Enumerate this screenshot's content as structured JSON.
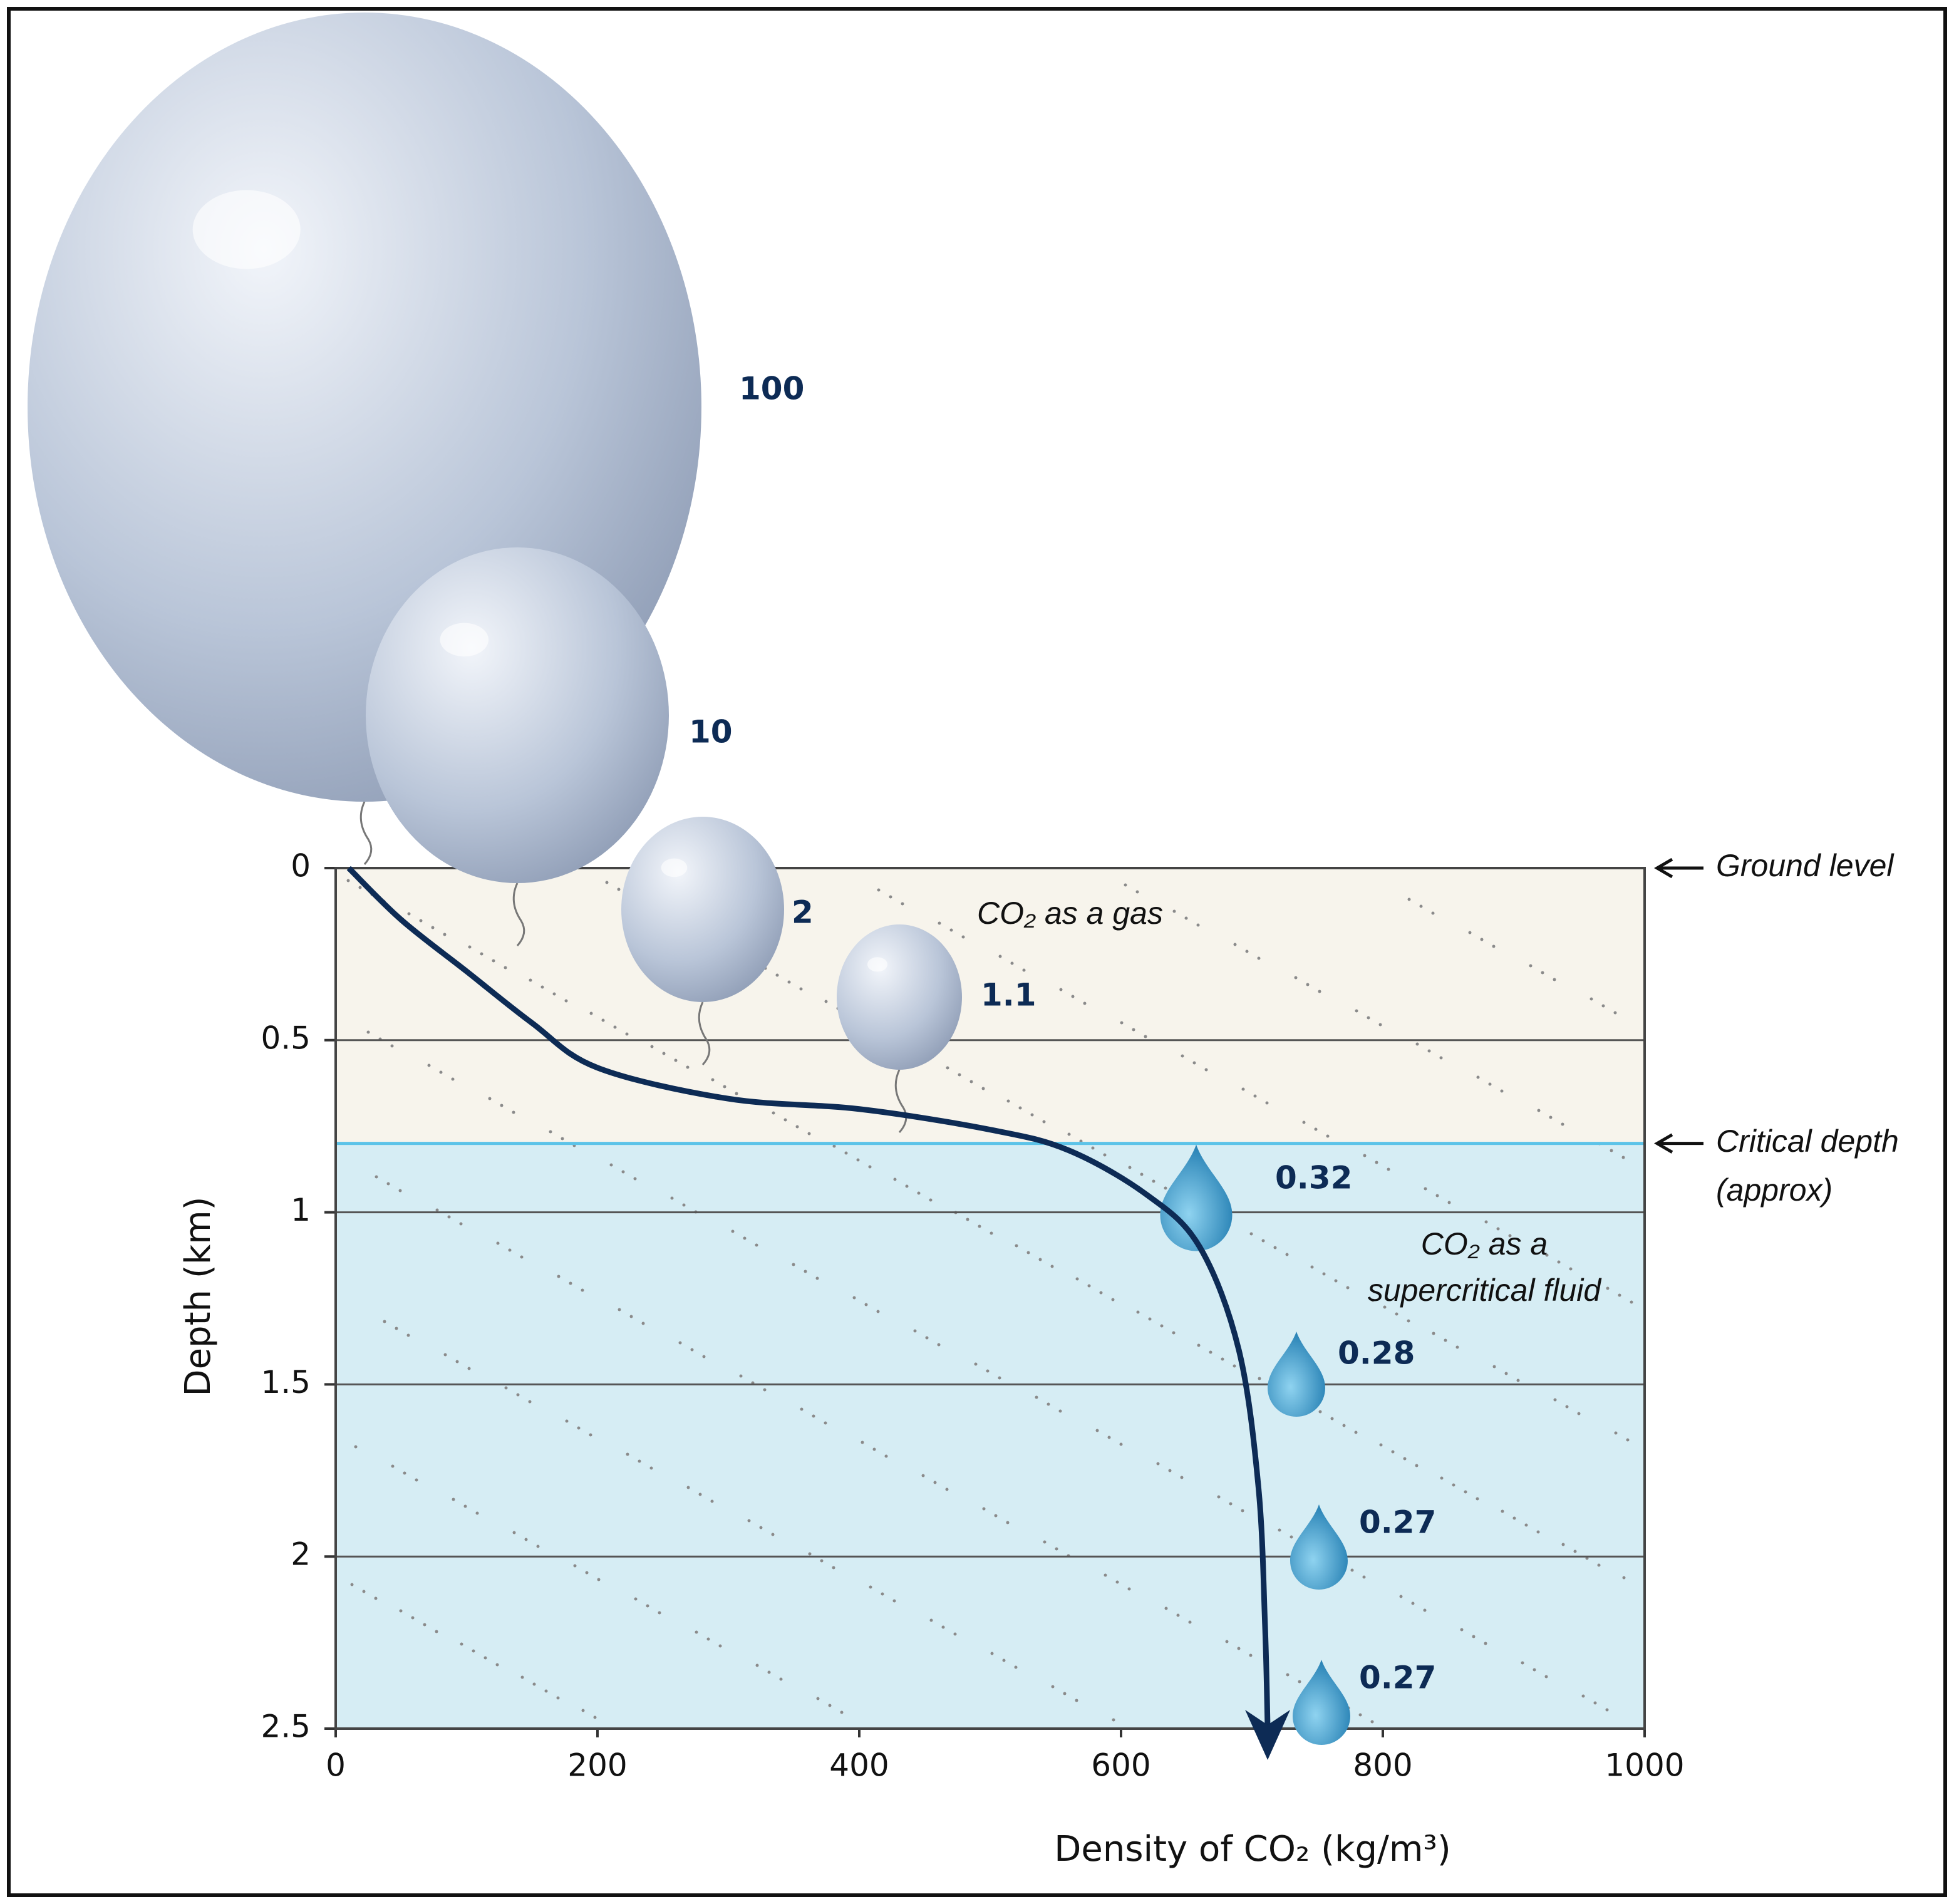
{
  "chart_data": {
    "type": "line",
    "x_label": "Density of CO₂ (kg/m³)",
    "y_label": "Depth (km)",
    "xlim": [
      0,
      1000
    ],
    "xticks": [
      0,
      200,
      400,
      600,
      800,
      1000
    ],
    "ylim": [
      0,
      2.5
    ],
    "yticks": [
      0,
      0.5,
      1,
      1.5,
      2,
      2.5
    ],
    "y_inverted": true,
    "grid": true,
    "x": [
      10,
      50,
      100,
      150,
      200,
      300,
      400,
      500,
      560,
      620,
      660,
      690,
      705,
      710,
      712
    ],
    "y": [
      0,
      0.15,
      0.3,
      0.45,
      0.58,
      0.67,
      0.7,
      0.76,
      0.82,
      0.95,
      1.1,
      1.4,
      1.8,
      2.2,
      2.5
    ],
    "color": "#0d2b55",
    "ground_level": 0,
    "ground_label": "Ground level",
    "critical_depth": 0.8,
    "critical_label": [
      "Critical depth",
      "(approx)"
    ],
    "gas_label": "CO₂ as a gas",
    "fluid_label": [
      "CO₂ as a",
      "supercritical fluid"
    ],
    "gas_color": "#f7f4ec",
    "fluid_color": "#d6edf4",
    "volumes": {
      "gas": [
        100,
        10,
        2,
        1.1
      ],
      "fluid": [
        0.32,
        0.28,
        0.27,
        0.27
      ]
    }
  }
}
